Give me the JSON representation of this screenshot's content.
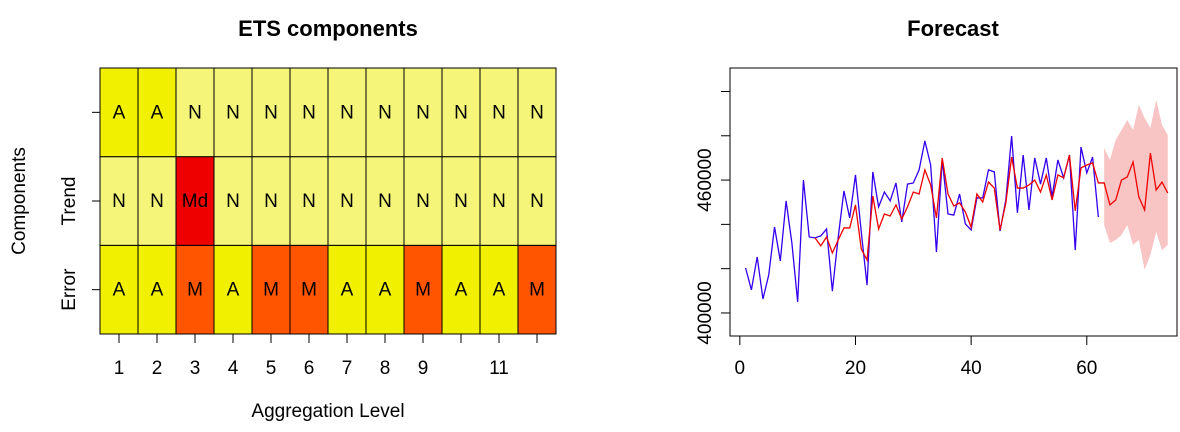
{
  "chart_data": [
    {
      "type": "heatmap",
      "title": "ETS components",
      "x_label": "Aggregation Level",
      "y_label": "Components",
      "categories": [
        "1",
        "2",
        "3",
        "4",
        "5",
        "6",
        "7",
        "8",
        "9",
        null,
        "11",
        null
      ],
      "rows": [
        {
          "name": "Error",
          "cells": [
            "A",
            "A",
            "M",
            "A",
            "M",
            "M",
            "A",
            "A",
            "M",
            "A",
            "A",
            "M"
          ]
        },
        {
          "name": "Trend",
          "cells": [
            "N",
            "N",
            "Md",
            "N",
            "N",
            "N",
            "N",
            "N",
            "N",
            "N",
            "N",
            "N"
          ]
        },
        {
          "name": null,
          "cells": [
            "A",
            "A",
            "N",
            "N",
            "N",
            "N",
            "N",
            "N",
            "N",
            "N",
            "N",
            "N"
          ]
        }
      ],
      "colors": {
        "A": "#f0f000",
        "N": "#f5f57a",
        "M": "#ff5500",
        "Md": "#ee0000"
      }
    },
    {
      "type": "line",
      "title": "Forecast",
      "x": [
        1,
        2,
        3,
        4,
        5,
        6,
        7,
        8,
        9,
        10,
        11,
        12,
        13,
        14,
        15,
        16,
        17,
        18,
        19,
        20,
        21,
        22,
        23,
        24,
        25,
        26,
        27,
        28,
        29,
        30,
        31,
        32,
        33,
        34,
        35,
        36,
        37,
        38,
        39,
        40,
        41,
        42,
        43,
        44,
        45,
        46,
        47,
        48,
        49,
        50,
        51,
        52,
        53,
        54,
        55,
        56,
        57,
        58,
        59,
        60,
        61,
        62,
        63,
        64,
        65,
        66,
        67,
        68,
        69,
        70,
        71,
        72,
        73,
        74
      ],
      "series": [
        {
          "color": "#3300ee",
          "values": [
            420300,
            410400,
            425300,
            406300,
            417200,
            438800,
            423500,
            450600,
            431600,
            405000,
            460000,
            434300,
            433900,
            434800,
            437900,
            409900,
            433900,
            455100,
            442900,
            462300,
            436600,
            412600,
            463700,
            447900,
            454600,
            450600,
            458700,
            441100,
            458200,
            458700,
            464600,
            477700,
            466800,
            427500,
            469100,
            444700,
            444200,
            453700,
            440200,
            437500,
            452000,
            451900,
            464600,
            463700,
            437000,
            451000,
            479900,
            445200,
            471300,
            446500,
            470000,
            458200,
            470000,
            452400,
            469100,
            461000,
            471300,
            428400,
            474900,
            463200,
            470400,
            443300,
            null,
            null,
            null,
            null,
            null,
            null,
            null,
            null,
            null,
            null,
            null,
            null
          ]
        },
        {
          "color": "#ee0000",
          "values": [
            null,
            null,
            null,
            null,
            null,
            null,
            null,
            null,
            null,
            null,
            null,
            null,
            433900,
            430300,
            434300,
            427100,
            432900,
            438400,
            438400,
            448800,
            428900,
            423900,
            452800,
            437900,
            444700,
            443800,
            448800,
            442400,
            447900,
            454600,
            453700,
            464600,
            457800,
            442900,
            470000,
            453700,
            448300,
            449700,
            445600,
            438800,
            453700,
            450100,
            459100,
            456400,
            437500,
            449700,
            470400,
            456400,
            456400,
            457800,
            460000,
            454600,
            462300,
            451000,
            462300,
            461000,
            471300,
            446100,
            465500,
            466800,
            467700,
            458700,
            458700,
            448800,
            451000,
            460000,
            461400,
            468200,
            452400,
            446500,
            472200,
            455500,
            459100,
            454200
          ]
        }
      ],
      "interval": {
        "color": "#f8c4c4",
        "lower": [
          null,
          null,
          null,
          null,
          null,
          null,
          null,
          null,
          null,
          null,
          null,
          null,
          null,
          null,
          null,
          null,
          null,
          null,
          null,
          null,
          null,
          null,
          null,
          null,
          null,
          null,
          null,
          null,
          null,
          null,
          null,
          null,
          null,
          null,
          null,
          null,
          null,
          null,
          null,
          null,
          null,
          null,
          null,
          null,
          null,
          null,
          null,
          null,
          null,
          null,
          null,
          null,
          null,
          null,
          null,
          null,
          null,
          null,
          null,
          null,
          null,
          null,
          439700,
          431600,
          433000,
          435200,
          439700,
          430700,
          433000,
          419400,
          426200,
          436600,
          428400,
          430700
        ],
        "upper": [
          null,
          null,
          null,
          null,
          null,
          null,
          null,
          null,
          null,
          null,
          null,
          null,
          null,
          null,
          null,
          null,
          null,
          null,
          null,
          null,
          null,
          null,
          null,
          null,
          null,
          null,
          null,
          null,
          null,
          null,
          null,
          null,
          null,
          null,
          null,
          null,
          null,
          null,
          null,
          null,
          null,
          null,
          null,
          null,
          null,
          null,
          null,
          null,
          null,
          null,
          null,
          null,
          null,
          null,
          null,
          null,
          null,
          null,
          null,
          null,
          null,
          null,
          474500,
          469100,
          478100,
          482600,
          487100,
          482600,
          493900,
          488000,
          483500,
          496200,
          484900,
          480400
        ]
      },
      "xlim": [
        -1.7,
        75.6
      ],
      "xticks": [
        0,
        20,
        40,
        60
      ],
      "ylim": [
        389600,
        510600
      ],
      "yticks": [
        400000,
        {
          "value": 420000,
          "label": null
        },
        {
          "value": 440000,
          "label": null
        },
        460000,
        {
          "value": 480000,
          "label": null
        },
        {
          "value": 500000,
          "label": null
        }
      ]
    }
  ]
}
